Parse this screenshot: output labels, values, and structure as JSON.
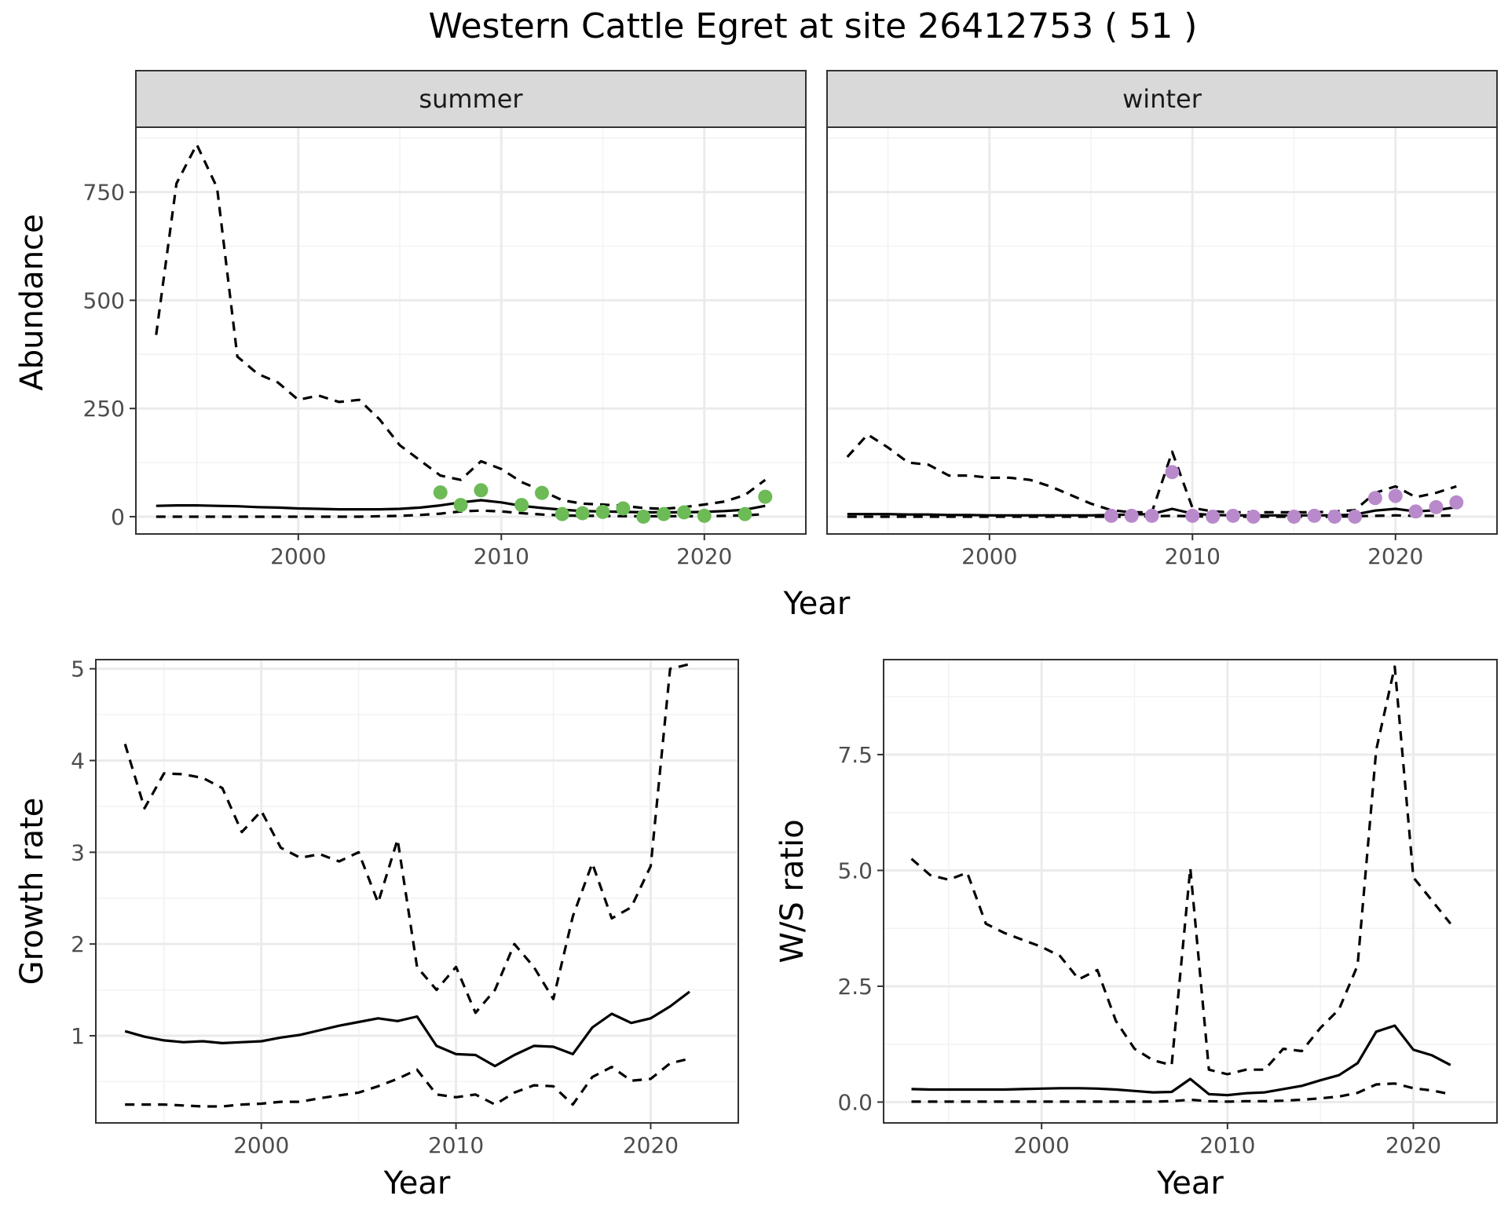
{
  "title": "Western Cattle Egret at site 26412753 ( 51 )",
  "colors": {
    "summer_points": "#6cbb56",
    "winter_points": "#b98acb"
  },
  "chart_data": [
    {
      "id": "abundance-summer",
      "type": "line",
      "strip": "summer",
      "ylabel": "Abundance",
      "xlim": [
        1992,
        2025
      ],
      "ylim": [
        -40,
        900
      ],
      "xticks": [
        2000,
        2010,
        2020
      ],
      "yticks": [
        0,
        250,
        500,
        750
      ],
      "series": [
        {
          "role": "estimate",
          "style": "solid",
          "x": [
            1993,
            1994,
            1995,
            1996,
            1997,
            1998,
            1999,
            2000,
            2001,
            2002,
            2003,
            2004,
            2005,
            2006,
            2007,
            2008,
            2009,
            2010,
            2011,
            2012,
            2013,
            2014,
            2015,
            2016,
            2017,
            2018,
            2019,
            2020,
            2021,
            2022,
            2023
          ],
          "y": [
            25,
            26,
            26,
            25,
            24,
            22,
            21,
            19,
            18,
            17,
            17,
            17,
            18,
            21,
            26,
            33,
            38,
            33,
            25,
            20,
            16,
            13,
            12,
            11,
            10,
            10,
            10,
            11,
            13,
            16,
            25
          ]
        },
        {
          "role": "upper",
          "style": "dashed",
          "x": [
            1993,
            1994,
            1995,
            1996,
            1997,
            1998,
            1999,
            2000,
            2001,
            2002,
            2003,
            2004,
            2005,
            2006,
            2007,
            2008,
            2009,
            2010,
            2011,
            2012,
            2013,
            2014,
            2015,
            2016,
            2017,
            2018,
            2019,
            2020,
            2021,
            2022,
            2023
          ],
          "y": [
            420,
            770,
            860,
            760,
            370,
            330,
            310,
            270,
            280,
            265,
            270,
            225,
            165,
            130,
            95,
            85,
            128,
            110,
            80,
            60,
            38,
            30,
            28,
            25,
            20,
            18,
            22,
            28,
            35,
            50,
            85
          ]
        },
        {
          "role": "lower",
          "style": "dashed",
          "x": [
            1993,
            1994,
            1995,
            1996,
            1997,
            1998,
            1999,
            2000,
            2001,
            2002,
            2003,
            2004,
            2005,
            2006,
            2007,
            2008,
            2009,
            2010,
            2011,
            2012,
            2013,
            2014,
            2015,
            2016,
            2017,
            2018,
            2019,
            2020,
            2021,
            2022,
            2023
          ],
          "y": [
            0,
            0,
            0,
            0,
            0,
            0,
            0,
            0,
            0,
            0,
            0,
            1,
            2,
            4,
            7,
            12,
            14,
            12,
            8,
            5,
            3,
            2,
            2,
            1,
            1,
            1,
            1,
            1,
            2,
            3,
            6
          ]
        }
      ],
      "points": {
        "color": "#6cbb56",
        "x": [
          2007,
          2008,
          2009,
          2011,
          2012,
          2013,
          2014,
          2015,
          2016,
          2017,
          2018,
          2019,
          2020,
          2022,
          2023
        ],
        "y": [
          56,
          27,
          61,
          27,
          55,
          6,
          8,
          11,
          19,
          0,
          6,
          10,
          2,
          6,
          46
        ]
      }
    },
    {
      "id": "abundance-winter",
      "type": "line",
      "strip": "winter",
      "xlim": [
        1992,
        2025
      ],
      "ylim": [
        -40,
        900
      ],
      "xticks": [
        2000,
        2010,
        2020
      ],
      "yticks": [
        0,
        250,
        500,
        750
      ],
      "series": [
        {
          "role": "estimate",
          "style": "solid",
          "x": [
            1993,
            1994,
            1995,
            1996,
            1997,
            1998,
            1999,
            2000,
            2001,
            2002,
            2003,
            2004,
            2005,
            2006,
            2007,
            2008,
            2009,
            2010,
            2011,
            2012,
            2013,
            2014,
            2015,
            2016,
            2017,
            2018,
            2019,
            2020,
            2021,
            2022,
            2023
          ],
          "y": [
            6,
            6,
            6,
            5,
            5,
            4,
            4,
            3,
            3,
            3,
            3,
            3,
            3,
            4,
            5,
            6,
            18,
            7,
            4,
            3,
            3,
            3,
            3,
            3,
            3,
            5,
            14,
            18,
            12,
            15,
            22
          ]
        },
        {
          "role": "upper",
          "style": "dashed",
          "x": [
            1993,
            1994,
            1995,
            1996,
            1997,
            1998,
            1999,
            2000,
            2001,
            2002,
            2003,
            2004,
            2005,
            2006,
            2007,
            2008,
            2009,
            2010,
            2011,
            2012,
            2013,
            2014,
            2015,
            2016,
            2017,
            2018,
            2019,
            2020,
            2021,
            2022,
            2023
          ],
          "y": [
            138,
            190,
            160,
            125,
            120,
            95,
            95,
            90,
            90,
            85,
            70,
            50,
            30,
            15,
            10,
            10,
            150,
            20,
            12,
            10,
            10,
            10,
            10,
            10,
            12,
            15,
            55,
            70,
            45,
            55,
            70
          ]
        },
        {
          "role": "lower",
          "style": "dashed",
          "x": [
            1993,
            1994,
            1995,
            1996,
            1997,
            1998,
            1999,
            2000,
            2001,
            2002,
            2003,
            2004,
            2005,
            2006,
            2007,
            2008,
            2009,
            2010,
            2011,
            2012,
            2013,
            2014,
            2015,
            2016,
            2017,
            2018,
            2019,
            2020,
            2021,
            2022,
            2023
          ],
          "y": [
            0,
            0,
            0,
            0,
            0,
            0,
            0,
            0,
            0,
            0,
            0,
            0,
            0,
            0,
            0,
            1,
            2,
            1,
            0,
            0,
            0,
            0,
            0,
            0,
            0,
            1,
            2,
            3,
            2,
            2,
            3
          ]
        }
      ],
      "points": {
        "color": "#b98acb",
        "x": [
          2006,
          2007,
          2008,
          2009,
          2010,
          2011,
          2012,
          2013,
          2015,
          2016,
          2017,
          2018,
          2019,
          2020,
          2021,
          2022,
          2023
        ],
        "y": [
          2,
          2,
          2,
          103,
          2,
          0,
          2,
          0,
          0,
          2,
          0,
          0,
          43,
          48,
          12,
          22,
          33
        ]
      }
    },
    {
      "id": "growth-rate",
      "type": "line",
      "ylabel": "Growth rate",
      "xlabel": "Year",
      "xlim": [
        1991.5,
        2024.5
      ],
      "ylim": [
        0.05,
        5.1
      ],
      "xticks": [
        2000,
        2010,
        2020
      ],
      "yticks": [
        1,
        2,
        3,
        4,
        5
      ],
      "series": [
        {
          "role": "estimate",
          "style": "solid",
          "x": [
            1993,
            1994,
            1995,
            1996,
            1997,
            1998,
            1999,
            2000,
            2001,
            2002,
            2003,
            2004,
            2005,
            2006,
            2007,
            2008,
            2009,
            2010,
            2011,
            2012,
            2013,
            2014,
            2015,
            2016,
            2017,
            2018,
            2019,
            2020,
            2021,
            2022
          ],
          "y": [
            1.05,
            0.99,
            0.95,
            0.93,
            0.94,
            0.92,
            0.93,
            0.94,
            0.98,
            1.01,
            1.06,
            1.11,
            1.15,
            1.19,
            1.16,
            1.21,
            0.89,
            0.8,
            0.79,
            0.67,
            0.79,
            0.89,
            0.88,
            0.8,
            1.09,
            1.24,
            1.14,
            1.19,
            1.32,
            1.48
          ]
        },
        {
          "role": "upper",
          "style": "dashed",
          "x": [
            1993,
            1994,
            1995,
            1996,
            1997,
            1998,
            1999,
            2000,
            2001,
            2002,
            2003,
            2004,
            2005,
            2006,
            2007,
            2008,
            2009,
            2010,
            2011,
            2012,
            2013,
            2014,
            2015,
            2016,
            2017,
            2018,
            2019,
            2020,
            2021,
            2022
          ],
          "y": [
            4.18,
            3.48,
            3.86,
            3.85,
            3.81,
            3.7,
            3.22,
            3.45,
            3.05,
            2.94,
            2.98,
            2.9,
            3.0,
            2.45,
            3.14,
            1.75,
            1.5,
            1.75,
            1.25,
            1.5,
            2.0,
            1.75,
            1.4,
            2.3,
            2.88,
            2.28,
            2.4,
            2.85,
            5.0,
            5.05
          ]
        },
        {
          "role": "lower",
          "style": "dashed",
          "x": [
            1993,
            1994,
            1995,
            1996,
            1997,
            1998,
            1999,
            2000,
            2001,
            2002,
            2003,
            2004,
            2005,
            2006,
            2007,
            2008,
            2009,
            2010,
            2011,
            2012,
            2013,
            2014,
            2015,
            2016,
            2017,
            2018,
            2019,
            2020,
            2021,
            2022
          ],
          "y": [
            0.25,
            0.25,
            0.25,
            0.24,
            0.23,
            0.23,
            0.25,
            0.26,
            0.28,
            0.28,
            0.32,
            0.35,
            0.38,
            0.45,
            0.53,
            0.63,
            0.36,
            0.33,
            0.36,
            0.25,
            0.38,
            0.46,
            0.45,
            0.25,
            0.55,
            0.66,
            0.51,
            0.53,
            0.7,
            0.75
          ]
        }
      ]
    },
    {
      "id": "ws-ratio",
      "type": "line",
      "ylabel": "W/S ratio",
      "xlabel": "Year",
      "xlim": [
        1991.5,
        2024.5
      ],
      "ylim": [
        -0.45,
        9.55
      ],
      "xticks": [
        2000,
        2010,
        2020
      ],
      "yticks": [
        0.0,
        2.5,
        5.0,
        7.5
      ],
      "ytick_labels": [
        "0.0",
        "2.5",
        "5.0",
        "7.5"
      ],
      "series": [
        {
          "role": "estimate",
          "style": "solid",
          "x": [
            1993,
            1994,
            1995,
            1996,
            1997,
            1998,
            1999,
            2000,
            2001,
            2002,
            2003,
            2004,
            2005,
            2006,
            2007,
            2008,
            2009,
            2010,
            2011,
            2012,
            2013,
            2014,
            2015,
            2016,
            2017,
            2018,
            2019,
            2020,
            2021,
            2022
          ],
          "y": [
            0.28,
            0.27,
            0.27,
            0.27,
            0.27,
            0.27,
            0.28,
            0.29,
            0.3,
            0.3,
            0.29,
            0.27,
            0.24,
            0.21,
            0.22,
            0.5,
            0.17,
            0.15,
            0.19,
            0.21,
            0.28,
            0.35,
            0.47,
            0.58,
            0.84,
            1.52,
            1.65,
            1.13,
            1.01,
            0.8
          ]
        },
        {
          "role": "upper",
          "style": "dashed",
          "x": [
            1993,
            1994,
            1995,
            1996,
            1997,
            1998,
            1999,
            2000,
            2001,
            2002,
            2003,
            2004,
            2005,
            2006,
            2007,
            2008,
            2009,
            2010,
            2011,
            2012,
            2013,
            2014,
            2015,
            2016,
            2017,
            2018,
            2019,
            2020,
            2021,
            2022
          ],
          "y": [
            5.25,
            4.9,
            4.8,
            4.95,
            3.85,
            3.65,
            3.5,
            3.35,
            3.15,
            2.65,
            2.85,
            1.75,
            1.15,
            0.9,
            0.8,
            5.05,
            0.7,
            0.6,
            0.7,
            0.7,
            1.15,
            1.1,
            1.6,
            2.0,
            2.95,
            7.6,
            9.4,
            4.85,
            4.35,
            3.85
          ]
        },
        {
          "role": "lower",
          "style": "dashed",
          "x": [
            1993,
            1994,
            1995,
            1996,
            1997,
            1998,
            1999,
            2000,
            2001,
            2002,
            2003,
            2004,
            2005,
            2006,
            2007,
            2008,
            2009,
            2010,
            2011,
            2012,
            2013,
            2014,
            2015,
            2016,
            2017,
            2018,
            2019,
            2020,
            2021,
            2022
          ],
          "y": [
            0.01,
            0.01,
            0.01,
            0.01,
            0.01,
            0.01,
            0.01,
            0.01,
            0.01,
            0.01,
            0.01,
            0.01,
            0.01,
            0.01,
            0.02,
            0.05,
            0.02,
            0.01,
            0.02,
            0.02,
            0.03,
            0.05,
            0.08,
            0.12,
            0.2,
            0.38,
            0.4,
            0.3,
            0.25,
            0.17
          ]
        }
      ]
    }
  ],
  "shared": {
    "top_xlabel": "Year"
  }
}
